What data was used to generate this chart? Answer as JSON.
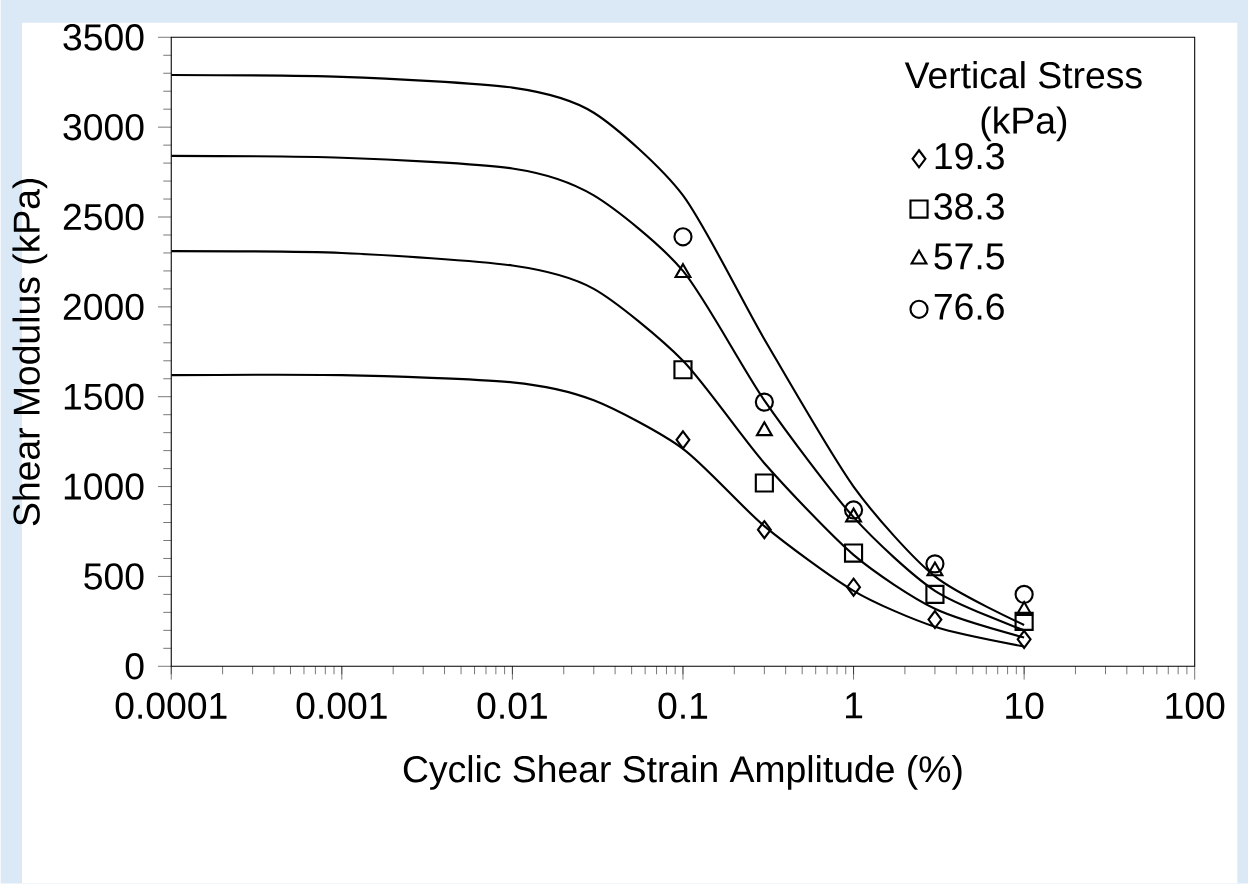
{
  "chart_data": {
    "type": "scatter",
    "xlabel": "Cyclic Shear Strain Amplitude (%)",
    "ylabel": "Shear Modulus (kPa)",
    "legend_title": "Vertical Stress (kPa)",
    "log": "x",
    "legend": "top right",
    "grid": false,
    "xlim": [
      0.0001,
      100
    ],
    "xticks": [
      0.0001,
      0.001,
      0.01,
      0.1,
      1,
      10,
      100
    ],
    "ylim": [
      0,
      3500
    ],
    "yticks": [
      0,
      500,
      1000,
      1500,
      2000,
      2500,
      3000,
      3500
    ],
    "series": [
      {
        "name": "19.3",
        "marker": "diamond",
        "color": "#000000",
        "x": [
          0.1,
          0.3,
          1,
          3,
          10
        ],
        "values": [
          1260,
          760,
          440,
          260,
          150
        ]
      },
      {
        "name": "38.3",
        "marker": "square",
        "color": "#000000",
        "x": [
          0.1,
          0.3,
          1,
          3,
          10
        ],
        "values": [
          1650,
          1020,
          630,
          400,
          250
        ]
      },
      {
        "name": "57.5",
        "marker": "triangle",
        "color": "#000000",
        "x": [
          0.1,
          0.3,
          1,
          3,
          10
        ],
        "values": [
          2190,
          1310,
          830,
          530,
          310
        ]
      },
      {
        "name": "76.6",
        "marker": "circle",
        "color": "#000000",
        "x": [
          0.1,
          0.3,
          1,
          3,
          10
        ],
        "values": [
          2390,
          1470,
          870,
          570,
          400
        ]
      },
      {
        "type": "line",
        "marker": "none",
        "color": "#000000",
        "x": [
          0.0001,
          0.001,
          0.01,
          0.03,
          0.1,
          0.3,
          1,
          3,
          10
        ],
        "values": [
          1620,
          1620,
          1580,
          1480,
          1210,
          780,
          420,
          220,
          110
        ]
      },
      {
        "type": "line",
        "marker": "none",
        "color": "#000000",
        "x": [
          0.0001,
          0.001,
          0.01,
          0.03,
          0.1,
          0.3,
          1,
          3,
          10
        ],
        "values": [
          2310,
          2300,
          2230,
          2100,
          1700,
          1130,
          620,
          320,
          160
        ]
      },
      {
        "type": "line",
        "marker": "none",
        "color": "#000000",
        "x": [
          0.0001,
          0.001,
          0.01,
          0.03,
          0.1,
          0.3,
          1,
          3,
          10
        ],
        "values": [
          2840,
          2830,
          2770,
          2620,
          2200,
          1480,
          830,
          420,
          200
        ]
      },
      {
        "type": "line",
        "marker": "none",
        "color": "#000000",
        "x": [
          0.0001,
          0.001,
          0.01,
          0.03,
          0.1,
          0.3,
          1,
          3,
          10
        ],
        "values": [
          3290,
          3280,
          3220,
          3080,
          2620,
          1820,
          1000,
          500,
          230
        ]
      }
    ]
  }
}
